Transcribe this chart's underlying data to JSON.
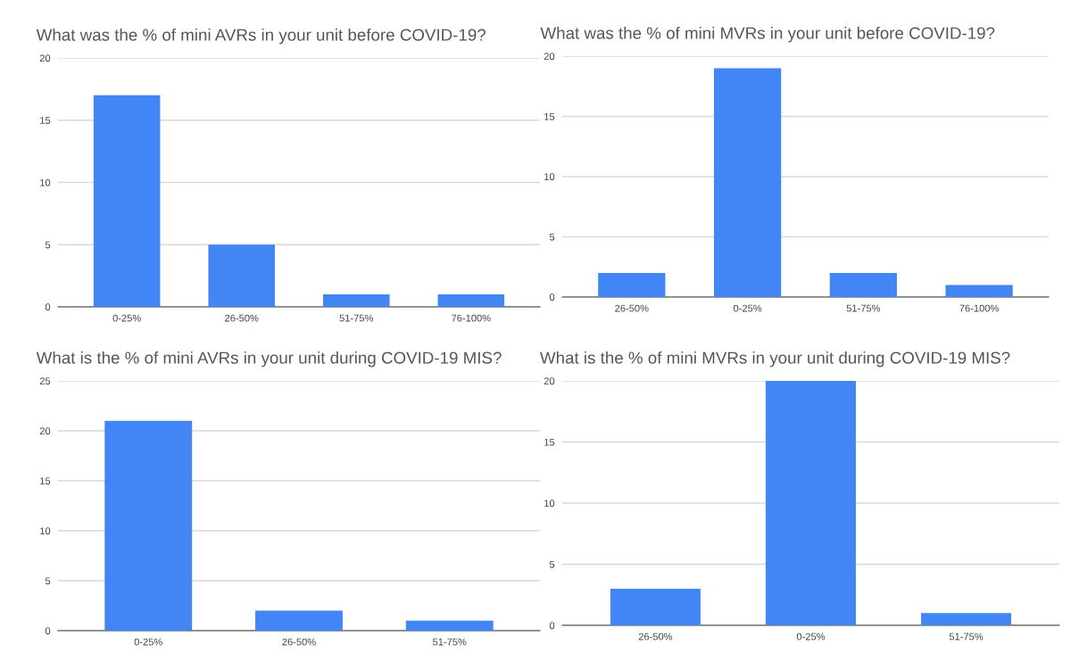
{
  "chart_data": [
    {
      "type": "bar",
      "title": "What was the % of mini AVRs in your unit before COVID-19?",
      "categories": [
        "0-25%",
        "26-50%",
        "51-75%",
        "76-100%"
      ],
      "values": [
        17,
        5,
        1,
        1
      ],
      "color": "#4285f4",
      "ylim": [
        0,
        20
      ],
      "yticks": [
        0,
        5,
        10,
        15,
        20
      ],
      "grid": "y"
    },
    {
      "type": "bar",
      "title": "What was the % of mini MVRs in your unit before COVID-19?",
      "categories": [
        "26-50%",
        "0-25%",
        "51-75%",
        "76-100%"
      ],
      "values": [
        2,
        19,
        2,
        1
      ],
      "color": "#4285f4",
      "ylim": [
        0,
        20
      ],
      "yticks": [
        0,
        5,
        10,
        15,
        20
      ],
      "grid": "y"
    },
    {
      "type": "bar",
      "title": "What is the % of mini AVRs in your unit during COVID-19 MIS?",
      "categories": [
        "0-25%",
        "26-50%",
        "51-75%"
      ],
      "values": [
        21,
        2,
        1
      ],
      "color": "#4285f4",
      "ylim": [
        0,
        25
      ],
      "yticks": [
        0,
        5,
        10,
        15,
        20,
        25
      ],
      "grid": "y"
    },
    {
      "type": "bar",
      "title": "What is the % of mini MVRs in your unit during COVID-19 MIS?",
      "categories": [
        "26-50%",
        "0-25%",
        "51-75%"
      ],
      "values": [
        3,
        20,
        1
      ],
      "color": "#4285f4",
      "ylim": [
        0,
        20
      ],
      "yticks": [
        0,
        5,
        10,
        15,
        20
      ],
      "grid": "y"
    }
  ]
}
